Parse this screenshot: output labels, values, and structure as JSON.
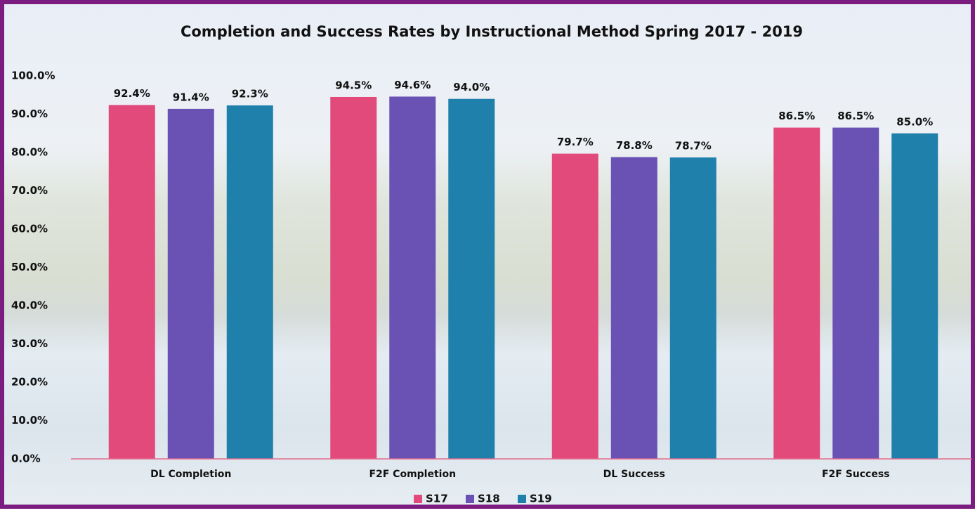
{
  "chart_data": {
    "type": "bar",
    "title": "Completion and Success Rates by Instructional Method Spring 2017 - 2019",
    "categories": [
      "DL Completion",
      "F2F Completion",
      "DL Success",
      "F2F Success"
    ],
    "series": [
      {
        "name": "S17",
        "color": "#e14a7b",
        "values": [
          92.4,
          94.5,
          79.7,
          86.5
        ],
        "value_labels": [
          "92.4%",
          "94.5%",
          "79.7%",
          "86.5%"
        ]
      },
      {
        "name": "S18",
        "color": "#6a52b4",
        "values": [
          91.4,
          94.6,
          78.8,
          86.5
        ],
        "value_labels": [
          "91.4%",
          "94.6%",
          "78.8%",
          "86.5%"
        ]
      },
      {
        "name": "S19",
        "color": "#1f80ac",
        "values": [
          92.3,
          94.0,
          78.7,
          85.0
        ],
        "value_labels": [
          "92.3%",
          "94.0%",
          "78.7%",
          "85.0%"
        ]
      }
    ],
    "ylim": [
      0,
      100
    ],
    "yticks": [
      {
        "value": 0,
        "label": "0.0%"
      },
      {
        "value": 10,
        "label": "10.0%"
      },
      {
        "value": 20,
        "label": "20.0%"
      },
      {
        "value": 30,
        "label": "30.0%"
      },
      {
        "value": 40,
        "label": "40.0%"
      },
      {
        "value": 50,
        "label": "50.0%"
      },
      {
        "value": 60,
        "label": "60.0%"
      },
      {
        "value": 70,
        "label": "70.0%"
      },
      {
        "value": 80,
        "label": "80.0%"
      },
      {
        "value": 90,
        "label": "90.0%"
      },
      {
        "value": 100,
        "label": "100.0%"
      }
    ],
    "legend": "bottom",
    "grid": false
  }
}
